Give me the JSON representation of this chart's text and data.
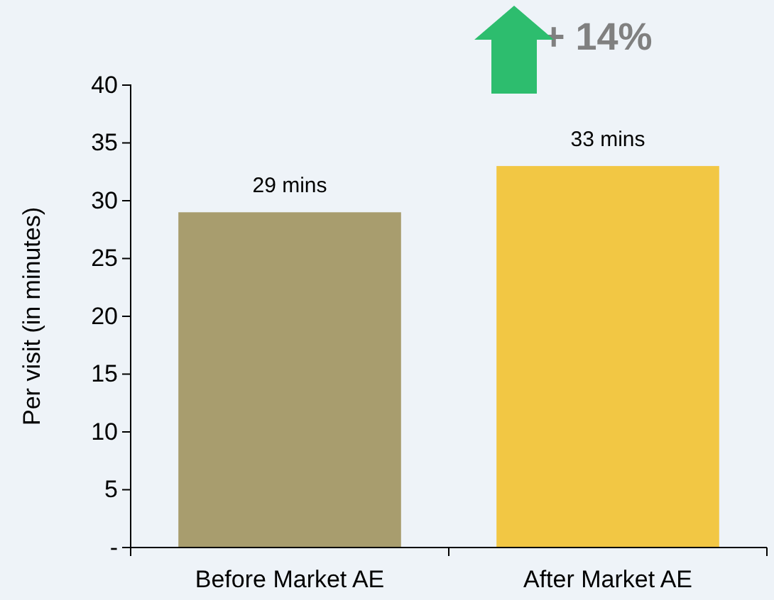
{
  "chart_data": {
    "type": "bar",
    "ylabel": "Per visit (in minutes)",
    "categories": [
      "Before Market AE",
      "After Market AE"
    ],
    "values": [
      29,
      33
    ],
    "colors": [
      "#a89d6e",
      "#f2c744"
    ],
    "value_labels": [
      "29 mins",
      "33 mins"
    ],
    "ylim": [
      0,
      40
    ],
    "yticks": [
      {
        "value": 0,
        "label": "-"
      },
      5,
      10,
      15,
      20,
      25,
      30,
      35,
      40
    ],
    "annotations": [
      "+ 14%"
    ]
  }
}
